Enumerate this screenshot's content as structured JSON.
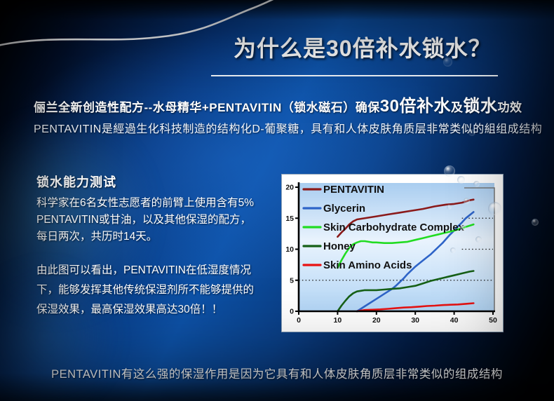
{
  "title": "为什么是30倍补水锁水？",
  "intro": {
    "line1_prefix": "俪兰全新创造性配方--水母精华+PENTAVITIN（锁水磁石）确保",
    "line1_big1": "30倍补水",
    "line1_mid": "及",
    "line1_big2": "锁水",
    "line1_suffix": "功效",
    "line2": "PENTAVITIN是經過生化科技制造的结构化D-葡聚糖，具有和人体皮肤角质层非常类似的組组成结构"
  },
  "test": {
    "heading": "锁水能力测试",
    "body_lines": [
      "科学家在6名女性志愿者的前臂上使用含有5%",
      "PENTAVITIN或甘油，以及其他保湿的配方，",
      "每日两次，共历时14天。"
    ],
    "conclusion_lines": [
      "由此图可以看出，PENTAVITIN在低湿度情况",
      "下，能够发挥其他传统保湿剂所不能够提供的",
      "保湿效果，最高保湿效果高达30倍！！"
    ]
  },
  "footer": "PENTAVITIN有这么强的保湿作用是因为它具有和人体皮肤角质层非常类似的组成结构",
  "colors": {
    "background_blue": "#0d52a8",
    "title_text": "#ffffff",
    "chart_panel_bg": "#ffffff",
    "plot_bg_top": "#a9cdf0",
    "plot_bg_mid": "#e9f3fd",
    "plot_bg_bottom": "#b3d6f6"
  },
  "chart_data": {
    "type": "line",
    "title": "",
    "xlabel": "",
    "ylabel": "",
    "xlim": [
      0,
      50
    ],
    "ylim": [
      0,
      20
    ],
    "x_ticks": [
      0,
      10,
      20,
      30,
      40,
      50
    ],
    "y_ticks": [
      0,
      5,
      10,
      15,
      20
    ],
    "legend_position": "top-left",
    "gridlines_dotted": [
      {
        "y": 5,
        "from": 0,
        "to": 50
      },
      {
        "y": 10,
        "from": 42,
        "to": 50
      },
      {
        "y": 15,
        "from": 42,
        "to": 50
      }
    ],
    "series": [
      {
        "name": "PENTAVITIN",
        "color": "#8B1A1A",
        "points": [
          [
            10,
            12
          ],
          [
            11,
            12.7
          ],
          [
            12,
            13.3
          ],
          [
            13,
            14
          ],
          [
            14,
            14.5
          ],
          [
            15,
            14.8
          ],
          [
            16,
            14.9
          ],
          [
            18,
            15.1
          ],
          [
            20,
            15.3
          ],
          [
            23,
            15.6
          ],
          [
            26,
            15.9
          ],
          [
            29,
            16.2
          ],
          [
            32,
            16.5
          ],
          [
            35,
            16.9
          ],
          [
            38,
            17.2
          ],
          [
            40,
            17.3
          ],
          [
            42,
            17.5
          ],
          [
            43,
            17.7
          ],
          [
            44,
            17.9
          ],
          [
            45,
            18
          ]
        ]
      },
      {
        "name": "Glycerin",
        "color": "#2E64C8",
        "points": [
          [
            15,
            0
          ],
          [
            16,
            0.4
          ],
          [
            17,
            0.8
          ],
          [
            18,
            1.2
          ],
          [
            19,
            1.6
          ],
          [
            20,
            2
          ],
          [
            21,
            2.4
          ],
          [
            22,
            2.8
          ],
          [
            23,
            3.2
          ],
          [
            24,
            3.6
          ],
          [
            25,
            4.1
          ],
          [
            26,
            4.7
          ],
          [
            27,
            5.3
          ],
          [
            28,
            6
          ],
          [
            29,
            6.6
          ],
          [
            30,
            7.2
          ],
          [
            31,
            7.7
          ],
          [
            32,
            8.2
          ],
          [
            33,
            8.7
          ],
          [
            34,
            9.2
          ],
          [
            35,
            9.8
          ],
          [
            36,
            10.4
          ],
          [
            37,
            11
          ],
          [
            38,
            11.7
          ],
          [
            39,
            12.4
          ],
          [
            40,
            13
          ],
          [
            41,
            13.7
          ],
          [
            42,
            14.3
          ],
          [
            43,
            15
          ],
          [
            44,
            15.5
          ],
          [
            45,
            16
          ]
        ]
      },
      {
        "name": "Skin Carbohydrate Complex",
        "color": "#22DC22",
        "points": [
          [
            10,
            7
          ],
          [
            11,
            8.2
          ],
          [
            12,
            9.3
          ],
          [
            13,
            10.2
          ],
          [
            14,
            10.8
          ],
          [
            15,
            11.1
          ],
          [
            16,
            11.3
          ],
          [
            17,
            11.3
          ],
          [
            18,
            11.2
          ],
          [
            19,
            11.1
          ],
          [
            20,
            11.1
          ],
          [
            22,
            11
          ],
          [
            24,
            11
          ],
          [
            26,
            11.1
          ],
          [
            28,
            11.2
          ],
          [
            30,
            11.5
          ],
          [
            32,
            11.8
          ],
          [
            34,
            12.1
          ],
          [
            36,
            12.4
          ],
          [
            38,
            12.7
          ],
          [
            40,
            13
          ],
          [
            42,
            13.4
          ],
          [
            44,
            13.8
          ],
          [
            45,
            14
          ]
        ]
      },
      {
        "name": "Honey",
        "color": "#166016",
        "points": [
          [
            10,
            0
          ],
          [
            11,
            0.9
          ],
          [
            12,
            1.7
          ],
          [
            13,
            2.4
          ],
          [
            14,
            2.9
          ],
          [
            15,
            3.2
          ],
          [
            16,
            3.3
          ],
          [
            17,
            3.4
          ],
          [
            18,
            3.4
          ],
          [
            20,
            3.4
          ],
          [
            22,
            3.5
          ],
          [
            24,
            3.6
          ],
          [
            26,
            3.7
          ],
          [
            28,
            3.9
          ],
          [
            30,
            4.1
          ],
          [
            32,
            4.5
          ],
          [
            34,
            4.9
          ],
          [
            36,
            5.2
          ],
          [
            38,
            5.5
          ],
          [
            40,
            5.8
          ],
          [
            42,
            6.1
          ],
          [
            44,
            6.4
          ],
          [
            45,
            6.5
          ]
        ]
      },
      {
        "name": "Skin Amino Acids",
        "color": "#E81212",
        "points": [
          [
            15,
            0
          ],
          [
            17,
            0.2
          ],
          [
            19,
            0.25
          ],
          [
            21,
            0.3
          ],
          [
            23,
            0.4
          ],
          [
            25,
            0.5
          ],
          [
            27,
            0.6
          ],
          [
            29,
            0.65
          ],
          [
            31,
            0.75
          ],
          [
            33,
            0.85
          ],
          [
            35,
            0.9
          ],
          [
            37,
            1
          ],
          [
            39,
            1.05
          ],
          [
            41,
            1.1
          ],
          [
            43,
            1.2
          ],
          [
            45,
            1.3
          ]
        ]
      }
    ]
  }
}
